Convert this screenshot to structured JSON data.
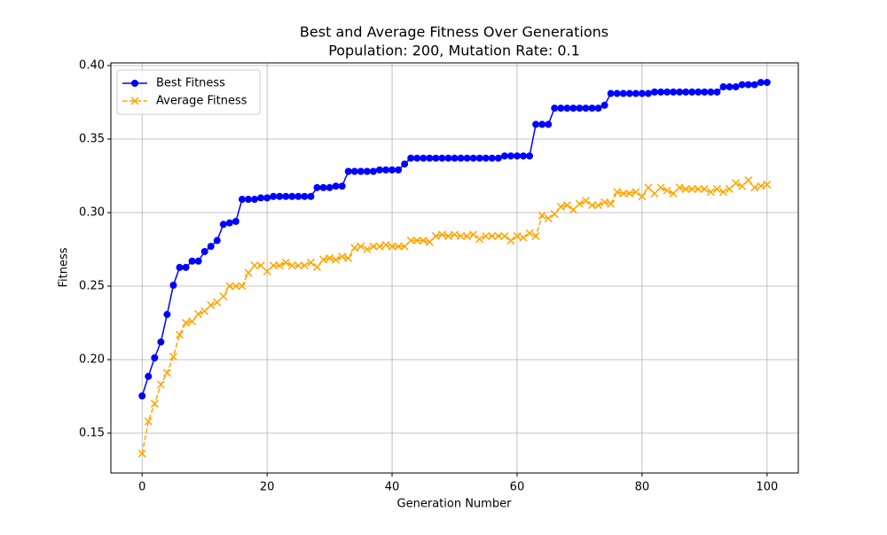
{
  "chart_data": {
    "type": "line",
    "title": "Best and Average Fitness Over Generations",
    "subtitle": "Population: 200, Mutation Rate: 0.1",
    "x_label": "Generation Number",
    "y_label": "Fitness",
    "x": [
      0,
      1,
      2,
      3,
      4,
      5,
      6,
      7,
      8,
      9,
      10,
      11,
      12,
      13,
      14,
      15,
      16,
      17,
      18,
      19,
      20,
      21,
      22,
      23,
      24,
      25,
      26,
      27,
      28,
      29,
      30,
      31,
      32,
      33,
      34,
      35,
      36,
      37,
      38,
      39,
      40,
      41,
      42,
      43,
      44,
      45,
      46,
      47,
      48,
      49,
      50,
      51,
      52,
      53,
      54,
      55,
      56,
      57,
      58,
      59,
      60,
      61,
      62,
      63,
      64,
      65,
      66,
      67,
      68,
      69,
      70,
      71,
      72,
      73,
      74,
      75,
      76,
      77,
      78,
      79,
      80,
      81,
      82,
      83,
      84,
      85,
      86,
      87,
      88,
      89,
      90,
      91,
      92,
      93,
      94,
      95,
      96,
      97,
      98,
      99,
      100
    ],
    "series": [
      {
        "name": "Best Fitness",
        "color": "#0000ff",
        "marker": "o",
        "linestyle": "solid",
        "values": [
          0.1753,
          0.1886,
          0.2012,
          0.212,
          0.2307,
          0.2506,
          0.2627,
          0.2627,
          0.267,
          0.267,
          0.2735,
          0.277,
          0.281,
          0.292,
          0.293,
          0.294,
          0.309,
          0.309,
          0.309,
          0.31,
          0.31,
          0.311,
          0.311,
          0.311,
          0.311,
          0.311,
          0.311,
          0.311,
          0.317,
          0.317,
          0.317,
          0.318,
          0.318,
          0.328,
          0.328,
          0.328,
          0.328,
          0.328,
          0.329,
          0.329,
          0.329,
          0.329,
          0.333,
          0.337,
          0.337,
          0.337,
          0.337,
          0.337,
          0.337,
          0.337,
          0.337,
          0.337,
          0.337,
          0.337,
          0.337,
          0.337,
          0.337,
          0.337,
          0.3385,
          0.3385,
          0.3385,
          0.3385,
          0.3385,
          0.36,
          0.36,
          0.36,
          0.371,
          0.371,
          0.371,
          0.371,
          0.371,
          0.371,
          0.371,
          0.371,
          0.373,
          0.381,
          0.381,
          0.381,
          0.381,
          0.381,
          0.381,
          0.381,
          0.382,
          0.382,
          0.382,
          0.382,
          0.382,
          0.382,
          0.382,
          0.382,
          0.382,
          0.382,
          0.382,
          0.3855,
          0.3855,
          0.3855,
          0.387,
          0.387,
          0.387,
          0.3885,
          0.3885
        ]
      },
      {
        "name": "Average Fitness",
        "color": "#ffa500",
        "marker": "x",
        "linestyle": "dashed",
        "values": [
          0.136,
          0.158,
          0.17,
          0.183,
          0.191,
          0.202,
          0.217,
          0.225,
          0.226,
          0.231,
          0.233,
          0.237,
          0.239,
          0.243,
          0.25,
          0.25,
          0.25,
          0.259,
          0.264,
          0.264,
          0.26,
          0.264,
          0.264,
          0.266,
          0.264,
          0.264,
          0.264,
          0.266,
          0.263,
          0.268,
          0.269,
          0.268,
          0.27,
          0.269,
          0.276,
          0.277,
          0.275,
          0.277,
          0.277,
          0.278,
          0.277,
          0.277,
          0.277,
          0.281,
          0.281,
          0.281,
          0.28,
          0.284,
          0.285,
          0.284,
          0.285,
          0.284,
          0.284,
          0.285,
          0.282,
          0.284,
          0.284,
          0.284,
          0.284,
          0.281,
          0.284,
          0.283,
          0.286,
          0.284,
          0.298,
          0.296,
          0.299,
          0.304,
          0.305,
          0.302,
          0.306,
          0.308,
          0.305,
          0.305,
          0.307,
          0.306,
          0.314,
          0.313,
          0.313,
          0.314,
          0.311,
          0.317,
          0.313,
          0.317,
          0.315,
          0.313,
          0.317,
          0.316,
          0.316,
          0.316,
          0.316,
          0.314,
          0.316,
          0.314,
          0.316,
          0.32,
          0.318,
          0.322,
          0.317,
          0.318,
          0.319
        ]
      }
    ],
    "xlim": [
      -5,
      105
    ],
    "ylim": [
      0.1229,
      0.4018
    ],
    "xticks": [
      0,
      20,
      40,
      60,
      80,
      100
    ],
    "yticks": [
      0.15,
      {
        "value": 0.2,
        "label": "0.20"
      },
      0.25,
      {
        "value": 0.3,
        "label": "0.30"
      },
      0.35,
      {
        "value": 0.4,
        "label": "0.40"
      }
    ],
    "grid": true,
    "legend": "upper left"
  }
}
